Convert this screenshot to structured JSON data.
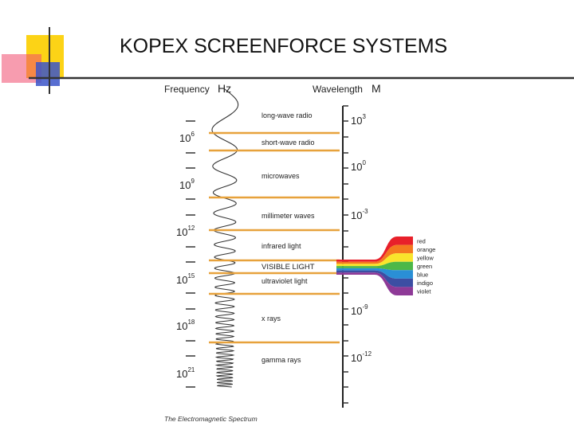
{
  "slide": {
    "title": "KOPEX SCREENFORCE SYSTEMS",
    "accent": {
      "yellow": "#fcd316",
      "pink": "#f04a6e",
      "blue": "#3b55c9",
      "dark": "#333333"
    }
  },
  "diagram": {
    "frequency_header": "Frequency",
    "frequency_unit": "Hz",
    "wavelength_header": "Wavelength",
    "wavelength_unit": "M",
    "caption": "The Electromagnetic Spectrum",
    "band_line_color": "#e7a23c",
    "frequency_labels": [
      {
        "base": "10",
        "exp": "6"
      },
      {
        "base": "10",
        "exp": "9"
      },
      {
        "base": "10",
        "exp": "12"
      },
      {
        "base": "10",
        "exp": "15"
      },
      {
        "base": "10",
        "exp": "18"
      },
      {
        "base": "10",
        "exp": "21"
      }
    ],
    "wavelength_labels": [
      {
        "base": "10",
        "exp": "3"
      },
      {
        "base": "10",
        "exp": "0"
      },
      {
        "base": "10",
        "exp": "-3"
      },
      {
        "base": "10",
        "exp": "-9"
      },
      {
        "base": "10",
        "exp": "-12"
      }
    ],
    "bands": [
      "long-wave radio",
      "short-wave radio",
      "microwaves",
      "millimeter waves",
      "infrared light",
      "VISIBLE LIGHT",
      "ultraviolet light",
      "x rays",
      "gamma rays"
    ],
    "visible_colors": [
      {
        "name": "red",
        "color": "#e8202a"
      },
      {
        "name": "orange",
        "color": "#f4791f"
      },
      {
        "name": "yellow",
        "color": "#f9e52b"
      },
      {
        "name": "green",
        "color": "#4cb848"
      },
      {
        "name": "blue",
        "color": "#2a8fd6"
      },
      {
        "name": "indigo",
        "color": "#3c4ea3"
      },
      {
        "name": "violet",
        "color": "#8e3a97"
      }
    ]
  }
}
